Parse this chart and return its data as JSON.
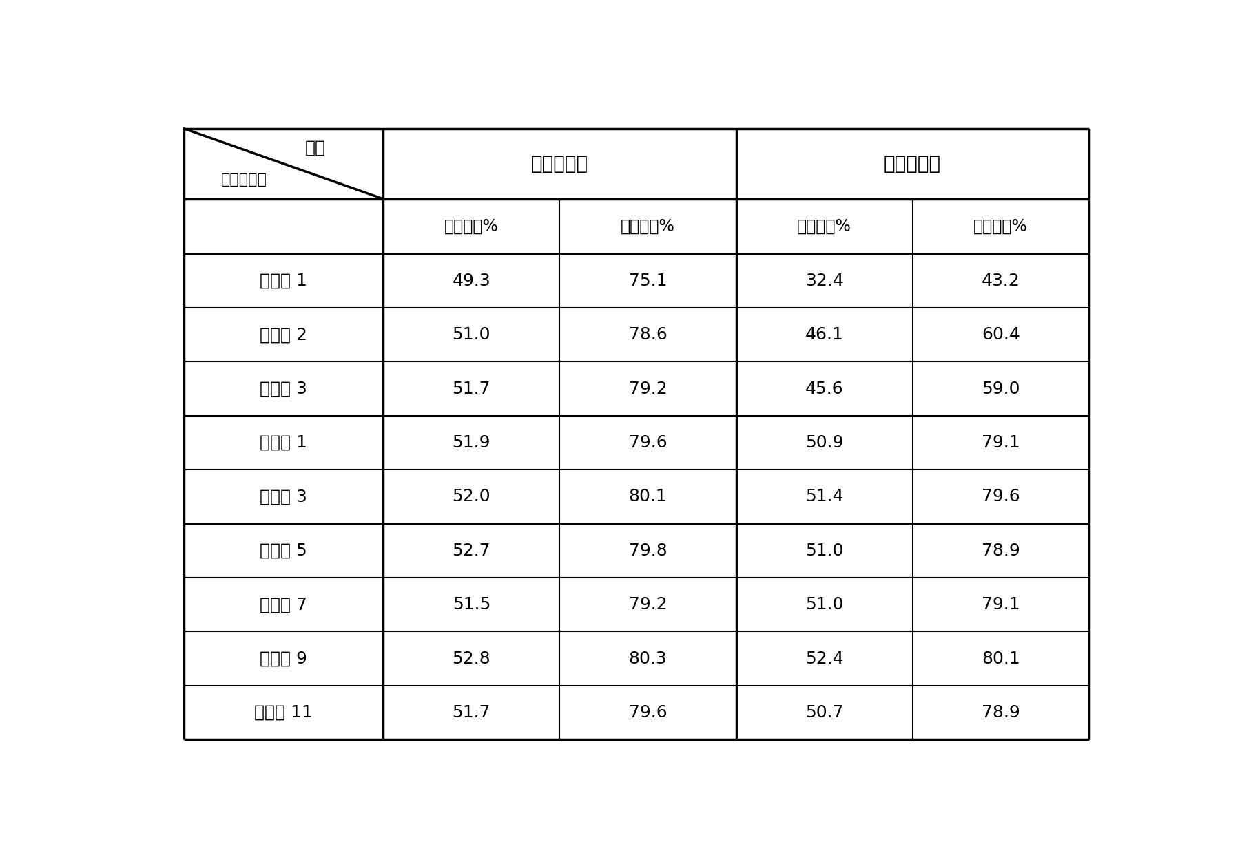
{
  "header_row1_col1": "第一次使用",
  "header_row1_col2": "第二次使用",
  "header_top_right": "项目",
  "header_top_left": "催化剑样品",
  "subheaders": [
    "质量收率%",
    "摩尔收率%",
    "质量收率%",
    "摩尔收率%"
  ],
  "rows": [
    [
      "比较例 1",
      "49.3",
      "75.1",
      "32.4",
      "43.2"
    ],
    [
      "比较例 2",
      "51.0",
      "78.6",
      "46.1",
      "60.4"
    ],
    [
      "比较例 3",
      "51.7",
      "79.2",
      "45.6",
      "59.0"
    ],
    [
      "实施例 1",
      "51.9",
      "79.6",
      "50.9",
      "79.1"
    ],
    [
      "实施例 3",
      "52.0",
      "80.1",
      "51.4",
      "79.6"
    ],
    [
      "实施例 5",
      "52.7",
      "79.8",
      "51.0",
      "78.9"
    ],
    [
      "实施例 7",
      "51.5",
      "79.2",
      "51.0",
      "79.1"
    ],
    [
      "实施例 9",
      "52.8",
      "80.3",
      "52.4",
      "80.1"
    ],
    [
      "实施例 11",
      "51.7",
      "79.6",
      "50.7",
      "78.9"
    ]
  ],
  "background_color": "#ffffff",
  "line_color": "#000000",
  "text_color": "#000000",
  "fig_width": 18.03,
  "fig_height": 12.39
}
